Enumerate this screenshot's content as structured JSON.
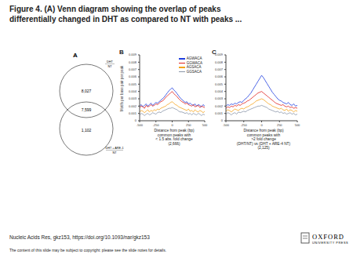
{
  "title": [
    "Figure 4. (A) Venn diagram showing the overlap of peaks",
    "differentially changed in DHT as compared to NT with peaks ..."
  ],
  "panels": [
    "A",
    "B",
    "C"
  ],
  "venn": {
    "top_label": [
      "DHT",
      "NT"
    ],
    "bottom_label": [
      "DHT + ARE-1",
      "NT"
    ],
    "top_only": "8,027",
    "overlap": "7,599",
    "bottom_only": "1,102"
  },
  "chart_data": [
    {
      "type": "line",
      "ylabel": "Motifs per base pair per peak",
      "xlabel": [
        "Distance from peak (bp)",
        "common peaks with",
        "< 1.5 abs. fold change",
        "(2,666)"
      ],
      "x": [
        -500,
        -475,
        -450,
        -425,
        -400,
        -375,
        -350,
        -325,
        -300,
        -275,
        -250,
        -225,
        -200,
        -175,
        -150,
        -125,
        -100,
        -75,
        -50,
        -25,
        0,
        25,
        50,
        75,
        100,
        125,
        150,
        175,
        200,
        225,
        250,
        275,
        300,
        325,
        350,
        375,
        400,
        425,
        450,
        475,
        500
      ],
      "xlim": [
        -500,
        500
      ],
      "xticks": [
        -500,
        -250,
        0,
        250,
        500
      ],
      "ylim": [
        0,
        0.009
      ],
      "yticks": [
        0,
        0.001,
        0.002,
        0.003,
        0.004,
        0.005,
        0.006,
        0.007,
        0.008,
        0.009
      ],
      "grid": false,
      "legend": "upper right",
      "series": [
        {
          "name": "AGWACA",
          "color": "#1f3fe0",
          "values": [
            0.002,
            0.0022,
            0.0019,
            0.0021,
            0.0023,
            0.002,
            0.0022,
            0.0024,
            0.0021,
            0.0023,
            0.0025,
            0.0024,
            0.0026,
            0.0028,
            0.003,
            0.0032,
            0.0035,
            0.0038,
            0.0041,
            0.0043,
            0.0045,
            0.0042,
            0.004,
            0.0037,
            0.0034,
            0.0031,
            0.0029,
            0.0027,
            0.0025,
            0.0026,
            0.0023,
            0.0024,
            0.0022,
            0.0021,
            0.0023,
            0.002,
            0.0022,
            0.0021,
            0.0019,
            0.0022,
            0.002
          ]
        },
        {
          "name": "GGWACA",
          "color": "#e0201c",
          "values": [
            0.0018,
            0.002,
            0.0019,
            0.0017,
            0.0021,
            0.0019,
            0.002,
            0.0022,
            0.002,
            0.0021,
            0.0023,
            0.0022,
            0.0024,
            0.0026,
            0.0027,
            0.0029,
            0.0032,
            0.0034,
            0.0036,
            0.0038,
            0.004,
            0.0037,
            0.0035,
            0.0033,
            0.003,
            0.0028,
            0.0026,
            0.0025,
            0.0023,
            0.0024,
            0.0022,
            0.0021,
            0.002,
            0.0022,
            0.0019,
            0.002,
            0.0021,
            0.0018,
            0.002,
            0.0019,
            0.0018
          ]
        },
        {
          "name": "AGSACA",
          "color": "#f5a21a",
          "values": [
            0.0012,
            0.0014,
            0.0013,
            0.0011,
            0.0013,
            0.0015,
            0.0012,
            0.0014,
            0.0013,
            0.0015,
            0.0014,
            0.0016,
            0.0015,
            0.0017,
            0.0018,
            0.0019,
            0.002,
            0.0022,
            0.0023,
            0.0025,
            0.0026,
            0.0024,
            0.0022,
            0.0021,
            0.0019,
            0.0018,
            0.0017,
            0.0016,
            0.0015,
            0.0014,
            0.0016,
            0.0013,
            0.0014,
            0.0012,
            0.0015,
            0.0013,
            0.0012,
            0.0014,
            0.0013,
            0.0011,
            0.0013
          ]
        },
        {
          "name": "GGSACA",
          "color": "#8a96a8",
          "values": [
            0.0008,
            0.001,
            0.0009,
            0.0007,
            0.0009,
            0.001,
            0.0008,
            0.0009,
            0.0011,
            0.001,
            0.0009,
            0.0011,
            0.0012,
            0.0011,
            0.0013,
            0.0014,
            0.0015,
            0.0016,
            0.0017,
            0.0017,
            0.0018,
            0.0017,
            0.0016,
            0.0015,
            0.0013,
            0.0012,
            0.0012,
            0.0011,
            0.001,
            0.0011,
            0.0009,
            0.001,
            0.0008,
            0.001,
            0.0009,
            0.0008,
            0.001,
            0.0009,
            0.0007,
            0.0009,
            0.0008
          ]
        }
      ]
    },
    {
      "type": "line",
      "xlabel": [
        "Distance from peak (bp)",
        "common peaks with",
        ">2 fold change",
        "(DHT/NT) vs (DHT + ARE-4 NT)",
        "(2,125)"
      ],
      "x": [
        -500,
        -475,
        -450,
        -425,
        -400,
        -375,
        -350,
        -325,
        -300,
        -275,
        -250,
        -225,
        -200,
        -175,
        -150,
        -125,
        -100,
        -75,
        -50,
        -25,
        0,
        25,
        50,
        75,
        100,
        125,
        150,
        175,
        200,
        225,
        250,
        275,
        300,
        325,
        350,
        375,
        400,
        425,
        450,
        475,
        500
      ],
      "xlim": [
        -500,
        500
      ],
      "xticks": [
        -500,
        -250,
        0,
        250,
        500
      ],
      "ylim": [
        0,
        0.009
      ],
      "yticks": [
        0,
        0.001,
        0.002,
        0.003,
        0.004,
        0.005,
        0.006,
        0.007,
        0.008,
        0.009
      ],
      "grid": false,
      "series": [
        {
          "color": "#1f3fe0",
          "values": [
            0.002,
            0.0022,
            0.0021,
            0.0023,
            0.0022,
            0.0024,
            0.0023,
            0.0025,
            0.0026,
            0.0025,
            0.0028,
            0.003,
            0.0032,
            0.0035,
            0.0038,
            0.0042,
            0.0046,
            0.005,
            0.0054,
            0.0058,
            0.0062,
            0.0059,
            0.0055,
            0.0051,
            0.0047,
            0.0043,
            0.0039,
            0.0036,
            0.0033,
            0.003,
            0.0028,
            0.0027,
            0.0025,
            0.0024,
            0.0023,
            0.0025,
            0.0022,
            0.0021,
            0.0023,
            0.002,
            0.0021
          ]
        },
        {
          "color": "#e0201c",
          "values": [
            0.0017,
            0.0019,
            0.0018,
            0.002,
            0.0019,
            0.0021,
            0.002,
            0.0022,
            0.0021,
            0.0023,
            0.0024,
            0.0025,
            0.0027,
            0.0028,
            0.003,
            0.0032,
            0.0034,
            0.0036,
            0.0038,
            0.0039,
            0.004,
            0.0038,
            0.0036,
            0.0034,
            0.0032,
            0.003,
            0.0028,
            0.0026,
            0.0024,
            0.0023,
            0.0022,
            0.0021,
            0.0022,
            0.002,
            0.0019,
            0.002,
            0.0018,
            0.0019,
            0.0017,
            0.0018,
            0.0017
          ]
        },
        {
          "color": "#f5a21a",
          "values": [
            0.0013,
            0.0015,
            0.0014,
            0.0012,
            0.0014,
            0.0016,
            0.0015,
            0.0014,
            0.0016,
            0.0017,
            0.0016,
            0.0018,
            0.0019,
            0.002,
            0.0022,
            0.0023,
            0.0025,
            0.0027,
            0.0028,
            0.0029,
            0.003,
            0.0029,
            0.0027,
            0.0025,
            0.0023,
            0.0022,
            0.002,
            0.0019,
            0.0018,
            0.0017,
            0.0016,
            0.0017,
            0.0015,
            0.0014,
            0.0016,
            0.0013,
            0.0015,
            0.0014,
            0.0012,
            0.0014,
            0.0013
          ]
        },
        {
          "color": "#8a96a8",
          "values": [
            0.0009,
            0.0011,
            0.001,
            0.0008,
            0.001,
            0.0011,
            0.0009,
            0.0012,
            0.0011,
            0.0012,
            0.0013,
            0.0012,
            0.0014,
            0.0015,
            0.0016,
            0.0017,
            0.0018,
            0.0019,
            0.002,
            0.002,
            0.0021,
            0.002,
            0.0019,
            0.0018,
            0.0016,
            0.0015,
            0.0014,
            0.0013,
            0.0012,
            0.0013,
            0.0011,
            0.0012,
            0.001,
            0.0011,
            0.0009,
            0.001,
            0.0011,
            0.0009,
            0.001,
            0.0008,
            0.0009
          ]
        }
      ]
    }
  ],
  "footer": {
    "citation": "Nucleic Acids Res, gkz153, https://doi.org/10.1093/nar/gkz153",
    "notice": "The content of this slide may be subject to copyright: please see the slide notes for details.",
    "logo": [
      "OXFORD",
      "UNIVERSITY PRESS"
    ]
  }
}
